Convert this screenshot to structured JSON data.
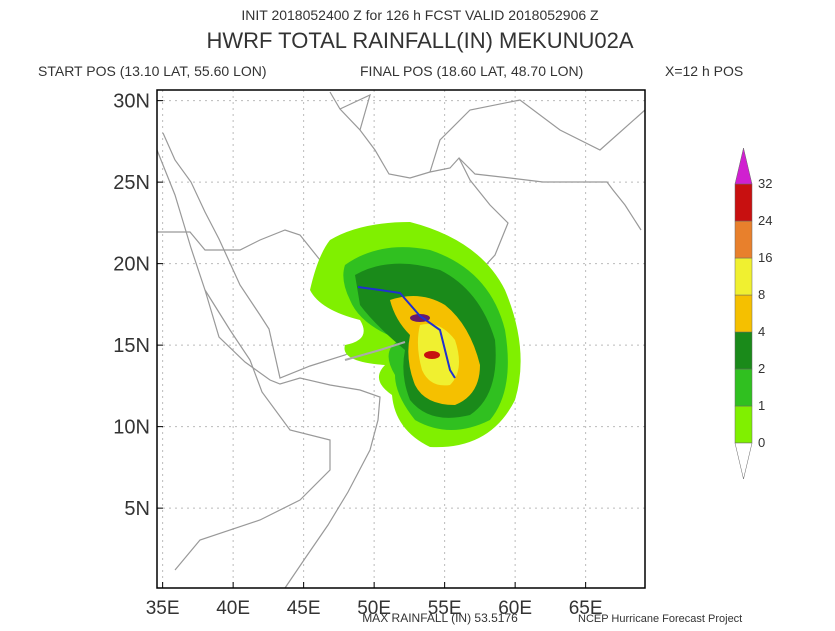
{
  "header": {
    "init": "INIT 2018052400 Z for 126 h FCST VALID 2018052906 Z",
    "title": "HWRF TOTAL RAINFALL(IN) MEKUNU02A",
    "start": "START POS (13.10 LAT, 55.60 LON)",
    "final": "FINAL POS (18.60 LAT, 48.70 LON)",
    "legend_note": "X=12 h POS"
  },
  "map": {
    "lon_ticks": [
      {
        "value": 35,
        "label": "35E"
      },
      {
        "value": 40,
        "label": "40E"
      },
      {
        "value": 45,
        "label": "45E"
      },
      {
        "value": 50,
        "label": "50E"
      },
      {
        "value": 55,
        "label": "55E"
      },
      {
        "value": 60,
        "label": "60E"
      },
      {
        "value": 65,
        "label": "65E"
      }
    ],
    "lat_ticks": [
      {
        "value": 5,
        "label": "5N"
      },
      {
        "value": 10,
        "label": "10N"
      },
      {
        "value": 15,
        "label": "15N"
      },
      {
        "value": 20,
        "label": "20N"
      },
      {
        "value": 25,
        "label": "25N"
      },
      {
        "value": 30,
        "label": "30N"
      }
    ]
  },
  "colorbar": {
    "levels": [
      0,
      1,
      2,
      4,
      8,
      16,
      24,
      32
    ],
    "colors": [
      "#80f000",
      "#30c020",
      "#1a8a1a",
      "#f5c000",
      "#f0f030",
      "#e8802c",
      "#c81010",
      "#d020d0"
    ]
  },
  "footer": {
    "max": "MAX RAINFALL (IN) 53.5176",
    "credit": "NCEP Hurricane Forecast Project"
  }
}
